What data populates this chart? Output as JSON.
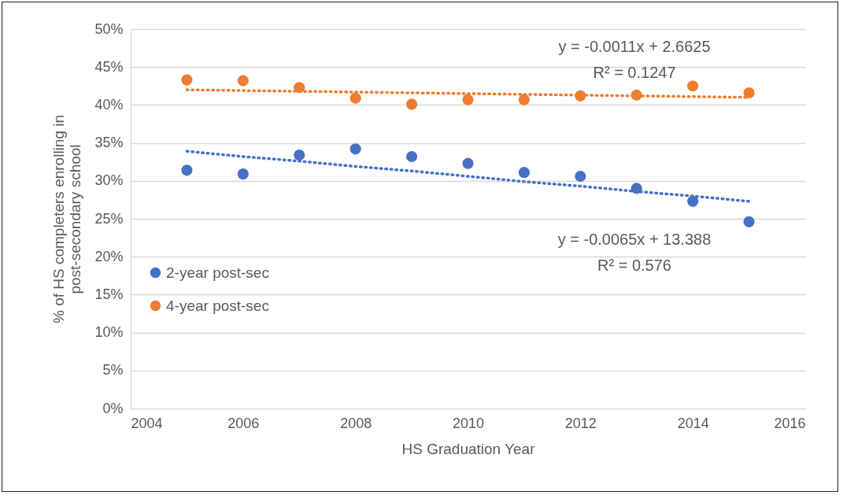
{
  "chart_data": {
    "type": "scatter",
    "xlabel": "HS Graduation Year",
    "ylabel": "% of HS completers enrolling in post-secondary school",
    "xlim": [
      2004,
      2016
    ],
    "xticks": [
      2004,
      2006,
      2008,
      2010,
      2012,
      2014,
      2016
    ],
    "ylim": [
      0,
      50
    ],
    "yticks": [
      {
        "value": 0,
        "label": "0%"
      },
      {
        "value": 5,
        "label": "5%"
      },
      {
        "value": 10,
        "label": "10%"
      },
      {
        "value": 15,
        "label": "15%"
      },
      {
        "value": 20,
        "label": "20%"
      },
      {
        "value": 25,
        "label": "25%"
      },
      {
        "value": 30,
        "label": "30%"
      },
      {
        "value": 35,
        "label": "35%"
      },
      {
        "value": 40,
        "label": "40%"
      },
      {
        "value": 45,
        "label": "45%"
      },
      {
        "value": 50,
        "label": "50%"
      }
    ],
    "grid": "y",
    "legend": "left",
    "marker": "circle",
    "x": [
      2005,
      2006,
      2007,
      2008,
      2009,
      2010,
      2011,
      2012,
      2013,
      2014,
      2015
    ],
    "series": [
      {
        "name": "2-year post-sec",
        "color": "#4472c4",
        "values": [
          31.4,
          30.9,
          33.4,
          34.2,
          33.2,
          32.3,
          31.1,
          30.6,
          29.0,
          27.3,
          24.6
        ]
      },
      {
        "name": "4-year post-sec",
        "color": "#ed7d31",
        "values": [
          43.3,
          43.2,
          42.3,
          40.9,
          40.1,
          40.7,
          40.7,
          41.2,
          41.3,
          42.5,
          41.6
        ]
      },
      {
        "type": "line",
        "color": "#ed7d31",
        "values": [
          42.0,
          41.9,
          41.8,
          41.7,
          41.6,
          41.5,
          41.4,
          41.3,
          41.2,
          41.1,
          41.0
        ],
        "line_style": "dotted",
        "marker": "none"
      },
      {
        "type": "line",
        "color": "#4472c4",
        "values": [
          33.9,
          33.2,
          32.6,
          31.9,
          31.3,
          30.6,
          29.9,
          29.3,
          28.6,
          28.0,
          27.3
        ],
        "line_style": "dotted",
        "marker": "none"
      }
    ],
    "annotations": [
      "y = -0.0011x + 2.6625",
      "R² = 0.1247",
      "y = -0.0065x + 13.388",
      "R² = 0.576"
    ]
  }
}
